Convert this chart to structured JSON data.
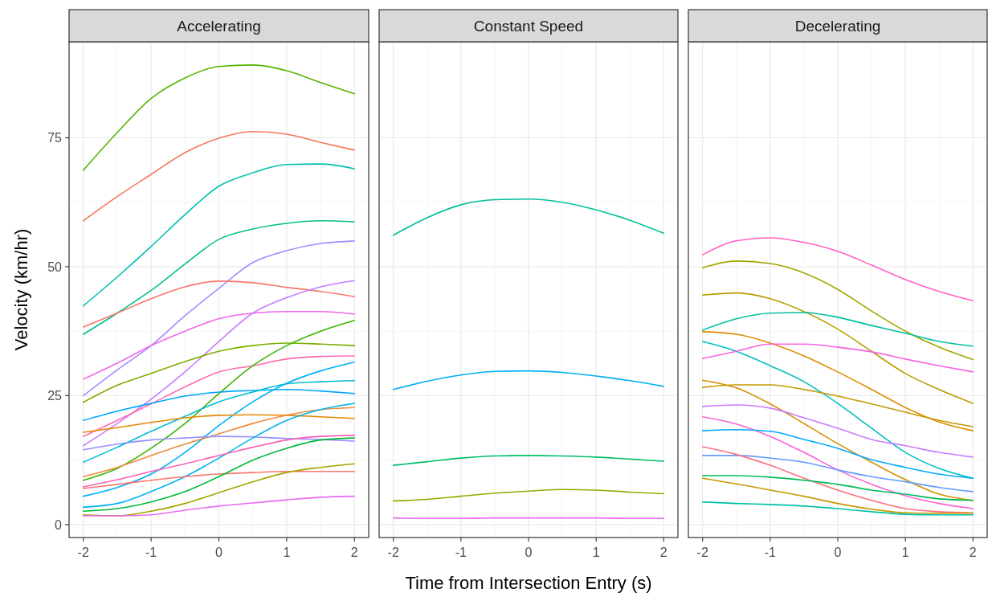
{
  "chart_data": [
    {
      "type": "line",
      "title": "Accelerating",
      "ylabel": "Velocity (km/hr)",
      "x": [
        -2,
        -1.5,
        -1,
        -0.5,
        0,
        0.5,
        1,
        1.5,
        2
      ],
      "xlim": [
        -2.21,
        2.21
      ],
      "xticks": [
        -2,
        -1,
        0,
        1,
        2
      ],
      "ylim": [
        -2.5,
        93.6
      ],
      "yticks": [
        0,
        25,
        50,
        75
      ],
      "grid": true,
      "line_style": "solid",
      "series": [
        {
          "color": "#53b400",
          "values": [
            68.7,
            76,
            82.6,
            86.6,
            88.8,
            89.1,
            88,
            85.7,
            83.5
          ]
        },
        {
          "color": "#f4795b",
          "values": [
            58.9,
            63.6,
            67.9,
            72.1,
            74.9,
            76.2,
            75.7,
            74.1,
            72.6
          ]
        },
        {
          "color": "#00bfb0",
          "values": [
            42.4,
            48,
            53.9,
            60.1,
            65.6,
            68.2,
            69.8,
            69.9,
            69
          ]
        },
        {
          "color": "#00c08b",
          "values": [
            36.9,
            41,
            45.4,
            50.5,
            55.3,
            57.3,
            58.4,
            58.9,
            58.7
          ]
        },
        {
          "color": "#a58aff",
          "values": [
            25,
            30,
            34.7,
            40.5,
            45.8,
            50.8,
            53.1,
            54.5,
            55
          ]
        },
        {
          "color": "#f8766d",
          "values": [
            38.3,
            41,
            43.8,
            46.1,
            47.2,
            46.9,
            46,
            45.2,
            44.2
          ]
        },
        {
          "color": "#ef67eb",
          "values": [
            28.2,
            31.3,
            34.7,
            37.5,
            39.9,
            41,
            41.3,
            41.3,
            40.8
          ]
        },
        {
          "color": "#c77cff",
          "values": [
            15.3,
            19.6,
            24.3,
            29.6,
            35.5,
            41,
            44,
            46.1,
            47.3
          ]
        },
        {
          "color": "#7cae00",
          "values": [
            23.7,
            27,
            29.3,
            31.6,
            33.6,
            34.7,
            35.2,
            35,
            34.7
          ]
        },
        {
          "color": "#ff6bb0",
          "values": [
            17.1,
            20.2,
            23.4,
            26.7,
            29.6,
            30.8,
            32.1,
            32.6,
            32.7
          ]
        },
        {
          "color": "#39b600",
          "values": [
            8.6,
            10.9,
            14.8,
            19.6,
            25.4,
            30.8,
            34.7,
            37.5,
            39.6
          ]
        },
        {
          "color": "#00a5ff",
          "values": [
            20.2,
            22,
            23.5,
            24.9,
            25.7,
            26,
            26.2,
            25.9,
            25.4
          ]
        },
        {
          "color": "#00bcd8",
          "values": [
            12.1,
            15,
            18.1,
            21,
            23.8,
            25.7,
            27.3,
            27.7,
            27.9
          ]
        },
        {
          "color": "#00b0f6",
          "values": [
            5.5,
            7.2,
            9.8,
            14,
            19.2,
            23.8,
            27.4,
            29.8,
            31.5
          ]
        },
        {
          "color": "#e58700",
          "values": [
            17.9,
            18.8,
            19.8,
            20.7,
            21.2,
            21.3,
            21.2,
            20.9,
            20.6
          ]
        },
        {
          "color": "#f08a3c",
          "values": [
            9.3,
            11.1,
            13.4,
            15.6,
            17.6,
            19.6,
            21.2,
            22.3,
            22.7
          ]
        },
        {
          "color": "#9590ff",
          "values": [
            14.5,
            15.6,
            16.4,
            16.8,
            17.1,
            17,
            16.7,
            16.5,
            16.2
          ]
        },
        {
          "color": "#00b4ef",
          "values": [
            3.4,
            4.1,
            6.4,
            9.3,
            12.9,
            16.8,
            20.2,
            22.3,
            23.5
          ]
        },
        {
          "color": "#fb61b5",
          "values": [
            7.3,
            8.7,
            10.3,
            11.8,
            13.4,
            15,
            16.4,
            17.1,
            17.3
          ]
        },
        {
          "color": "#f8766d",
          "values": [
            7,
            7.8,
            8.6,
            9.3,
            9.8,
            10.1,
            10.3,
            10.3,
            10.3
          ]
        },
        {
          "color": "#00ba38",
          "values": [
            2.6,
            3.1,
            4.4,
            6.4,
            9.3,
            12.5,
            14.8,
            16.4,
            16.8
          ]
        },
        {
          "color": "#a3a500",
          "values": [
            1.9,
            1.7,
            2.6,
            4.1,
            6.2,
            8.3,
            10.1,
            11.1,
            11.8
          ]
        },
        {
          "color": "#e76bf3",
          "values": [
            1.7,
            1.7,
            1.9,
            2.8,
            3.6,
            4.2,
            4.8,
            5.3,
            5.5
          ]
        }
      ]
    },
    {
      "type": "line",
      "title": "Constant Speed",
      "xlabel": "Time from Intersection Entry (s)",
      "x": [
        -2,
        -1.5,
        -1,
        -0.5,
        0,
        0.5,
        1,
        1.5,
        2
      ],
      "xlim": [
        -2.21,
        2.21
      ],
      "xticks": [
        -2,
        -1,
        0,
        1,
        2
      ],
      "ylim": [
        -2.5,
        93.6
      ],
      "yticks": [
        0,
        25,
        50,
        75
      ],
      "grid": true,
      "line_style": "solid",
      "tick_labels": "x",
      "series": [
        {
          "color": "#00c19a",
          "values": [
            56.1,
            59.5,
            62,
            63,
            63.1,
            62.5,
            61,
            59,
            56.5
          ]
        },
        {
          "color": "#00b0f6",
          "values": [
            26.2,
            27.8,
            29,
            29.7,
            29.8,
            29.5,
            28.8,
            27.9,
            26.8
          ]
        },
        {
          "color": "#00be67",
          "values": [
            11.5,
            12.2,
            12.9,
            13.3,
            13.4,
            13.3,
            13.1,
            12.7,
            12.3
          ]
        },
        {
          "color": "#8fad00",
          "values": [
            4.6,
            4.9,
            5.5,
            6.1,
            6.5,
            6.8,
            6.7,
            6.3,
            6
          ]
        },
        {
          "color": "#e76bf3",
          "values": [
            1.3,
            1.2,
            1.2,
            1.3,
            1.3,
            1.3,
            1.3,
            1.2,
            1.2
          ]
        }
      ]
    },
    {
      "type": "line",
      "title": "Decelerating",
      "x": [
        -2,
        -1.5,
        -1,
        -0.5,
        0,
        0.5,
        1,
        1.5,
        2
      ],
      "xlim": [
        -2.21,
        2.21
      ],
      "xticks": [
        -2,
        -1,
        0,
        1,
        2
      ],
      "ylim": [
        -2.5,
        93.6
      ],
      "yticks": [
        0,
        25,
        50,
        75
      ],
      "grid": true,
      "line_style": "solid",
      "tick_labels": "x",
      "series": [
        {
          "color": "#ff61c3",
          "values": [
            52.3,
            55,
            55.6,
            54.7,
            53,
            50.3,
            47.5,
            45.2,
            43.4
          ]
        },
        {
          "color": "#a3a500",
          "values": [
            49.8,
            51.1,
            50.6,
            48.8,
            45.6,
            41.4,
            37.5,
            34.4,
            32
          ]
        },
        {
          "color": "#b79f00",
          "values": [
            44.5,
            44.9,
            43.8,
            41.3,
            37.9,
            33.6,
            29.3,
            26.2,
            23.5
          ]
        },
        {
          "color": "#00bfa0",
          "values": [
            37.7,
            39.9,
            41,
            41.1,
            40.2,
            38.6,
            37.1,
            35.5,
            34.6
          ]
        },
        {
          "color": "#de8c00",
          "values": [
            37.4,
            36.9,
            35.2,
            32.7,
            29.6,
            26.2,
            22.7,
            19.9,
            18.2
          ]
        },
        {
          "color": "#00bfc4",
          "values": [
            35.5,
            33.6,
            30.8,
            27.7,
            23.5,
            18.7,
            14,
            10.9,
            9
          ]
        },
        {
          "color": "#f564e3",
          "values": [
            32.2,
            33.6,
            35,
            35,
            34.4,
            33.5,
            32.1,
            30.8,
            29.6
          ]
        },
        {
          "color": "#d89000",
          "values": [
            28,
            26.5,
            23.4,
            19.6,
            15.7,
            12.1,
            8.7,
            5.9,
            4.7
          ]
        },
        {
          "color": "#c49a00",
          "values": [
            26.6,
            27.1,
            27.1,
            26.2,
            24.9,
            23.4,
            21.8,
            20.2,
            19
          ]
        },
        {
          "color": "#c77cff",
          "values": [
            22.9,
            23.2,
            22.6,
            20.7,
            18.7,
            16.5,
            15.3,
            14,
            13.1
          ]
        },
        {
          "color": "#fb61d7",
          "values": [
            20.9,
            19.5,
            17.1,
            14,
            10.6,
            7.8,
            5.6,
            4.1,
            3.1
          ]
        },
        {
          "color": "#00a9ff",
          "values": [
            18.2,
            18.4,
            18.1,
            16.5,
            14.8,
            12.6,
            11.1,
            9.8,
            9
          ]
        },
        {
          "color": "#619cff",
          "values": [
            13.4,
            13.4,
            12.9,
            12.1,
            10.6,
            9.3,
            8.3,
            7.2,
            6.4
          ]
        },
        {
          "color": "#fc717f",
          "values": [
            15.1,
            13.6,
            11.5,
            9,
            6.7,
            4.7,
            3.1,
            2.5,
            2.3
          ]
        },
        {
          "color": "#00bc56",
          "values": [
            9.5,
            9.5,
            9.2,
            8.6,
            7.8,
            6.7,
            5.9,
            5,
            4.7
          ]
        },
        {
          "color": "#c99800",
          "values": [
            9,
            7.9,
            6.7,
            5.5,
            4.1,
            3,
            2.3,
            2.2,
            2.2
          ]
        },
        {
          "color": "#00c1a7",
          "values": [
            4.4,
            4.1,
            3.9,
            3.6,
            3.1,
            2.5,
            2,
            1.9,
            1.9
          ]
        }
      ]
    }
  ]
}
